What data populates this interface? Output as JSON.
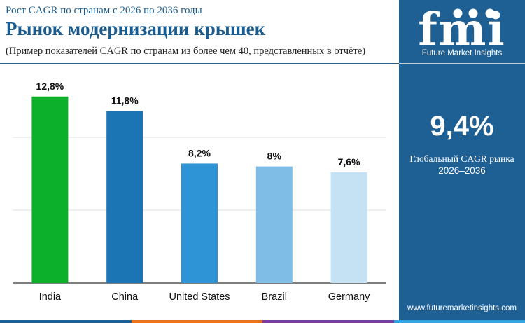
{
  "header": {
    "subtitle": "Рост CAGR по странам с 2026 по 2036 годы",
    "title": "Рынок модернизации крышек",
    "note": "(Пример показателей CAGR по странам из более чем 40, представленных в отчёте)"
  },
  "chart_data": {
    "type": "bar",
    "title": "Рынок модернизации крышек",
    "subtitle": "Рост CAGR по странам с 2026 по 2036 годы",
    "categories": [
      "India",
      "China",
      "United States",
      "Brazil",
      "Germany"
    ],
    "values": [
      12.8,
      11.8,
      8.2,
      8.0,
      7.6
    ],
    "value_labels": [
      "12,8%",
      "11,8%",
      "8,2%",
      "8%",
      "7,6%"
    ],
    "bar_colors": [
      "#0db02b",
      "#1b74b4",
      "#2e94d6",
      "#7fbde6",
      "#c4e2f4"
    ],
    "ylim": [
      0,
      15
    ],
    "grid": true,
    "legend": "none",
    "xlabel": "",
    "ylabel": ""
  },
  "sidebar": {
    "logo_text": "fmi",
    "brand": "Future Market Insights",
    "global_value": "9,4%",
    "global_label": "Глобальный CAGR рынка",
    "period": "2026–2036",
    "website": "www.futuremarketinsights.com"
  },
  "colors": {
    "sidebar_bg": "#1e5f94",
    "title": "#1a5c8f",
    "strip": [
      "#1e5f94",
      "#e8731f",
      "#7a3e9d",
      "#2ea3dd"
    ]
  }
}
